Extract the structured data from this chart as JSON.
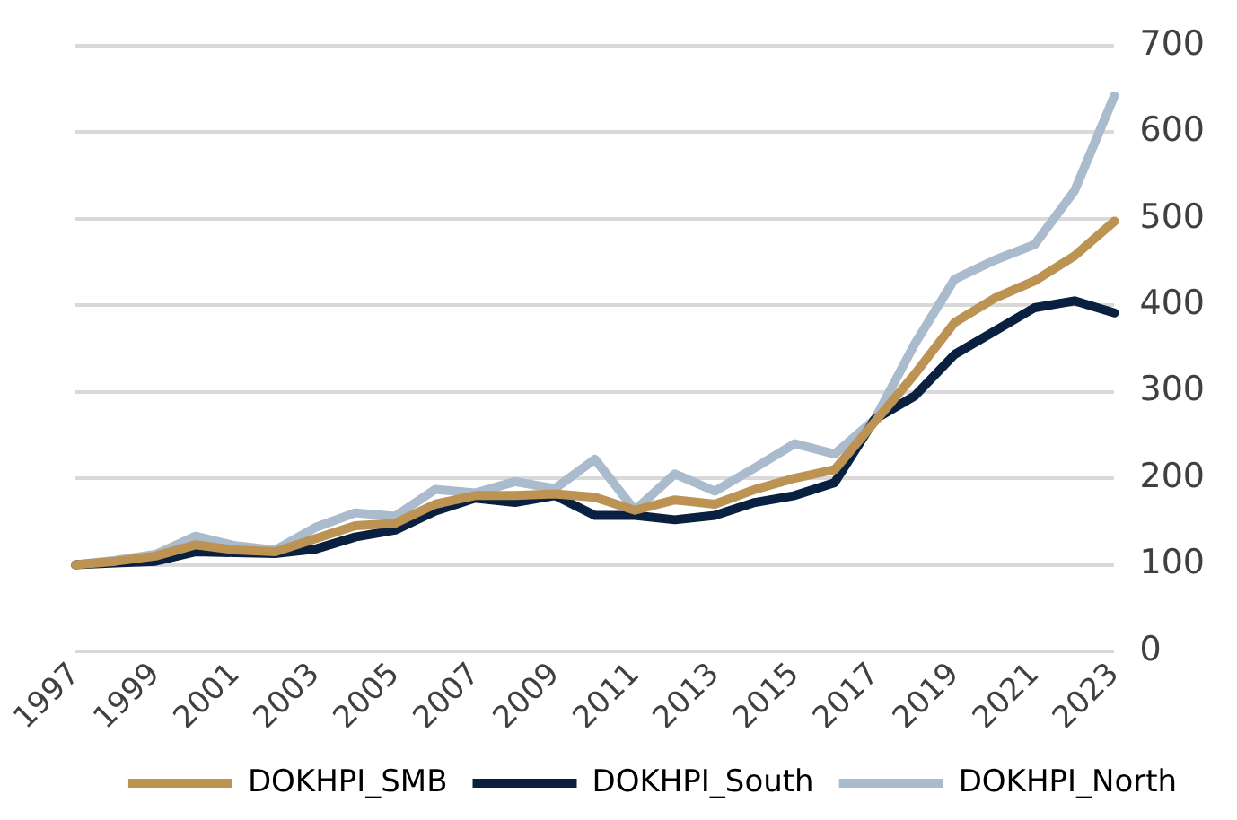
{
  "chart_data": {
    "type": "line",
    "categories": [
      "1997",
      null,
      "1999",
      null,
      "2001",
      null,
      "2003",
      null,
      "2005",
      null,
      "2007",
      null,
      "2009",
      null,
      "2011",
      null,
      "2013",
      null,
      "2015",
      null,
      "2017",
      null,
      "2019",
      null,
      "2021",
      null,
      "2023"
    ],
    "series": [
      {
        "name": "DOKHPI_SMB",
        "color": "#bd9354",
        "values": [
          100,
          104,
          110,
          123,
          117,
          115,
          130,
          145,
          148,
          170,
          180,
          180,
          182,
          178,
          163,
          175,
          170,
          187,
          200,
          210,
          265,
          320,
          380,
          408,
          428,
          457,
          497
        ]
      },
      {
        "name": "DOKHPI_South",
        "color": "#0a2040",
        "values": [
          100,
          102,
          104,
          115,
          114,
          113,
          118,
          132,
          140,
          162,
          177,
          172,
          180,
          157,
          157,
          152,
          157,
          172,
          180,
          195,
          268,
          295,
          343,
          370,
          397,
          405,
          391
        ]
      },
      {
        "name": "DOKHPI_North",
        "color": "#a9bbcc",
        "values": [
          100,
          105,
          112,
          133,
          122,
          117,
          143,
          160,
          156,
          187,
          183,
          196,
          188,
          222,
          163,
          205,
          185,
          212,
          240,
          228,
          268,
          355,
          430,
          452,
          470,
          532,
          642
        ]
      }
    ],
    "ylim": [
      0,
      700
    ],
    "yticks": [
      0,
      100,
      200,
      300,
      400,
      500,
      600,
      700
    ],
    "grid": "y",
    "legend": "bottom",
    "marker": "none",
    "line_style": "solid"
  }
}
